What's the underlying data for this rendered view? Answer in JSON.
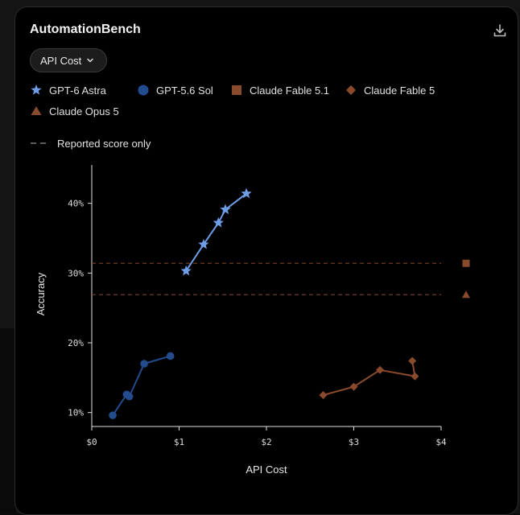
{
  "title": "AutomationBench",
  "metric_selector": {
    "selected": "API Cost"
  },
  "legend": [
    {
      "label": "GPT-6 Astra",
      "marker": "star",
      "color": "#6f9ee8"
    },
    {
      "label": "GPT-5.6 Sol",
      "marker": "circle",
      "color": "#234c8e"
    },
    {
      "label": "Claude Fable 5.1",
      "marker": "square",
      "color": "#8a4a2c"
    },
    {
      "label": "Claude Fable 5",
      "marker": "diamond",
      "color": "#8a4a2c"
    },
    {
      "label": "Claude Opus 5",
      "marker": "triangle",
      "color": "#8a4a2c"
    }
  ],
  "reported_note": "Reported score only",
  "chart_data": {
    "type": "line",
    "xlabel": "API Cost",
    "ylabel": "Accuracy",
    "xlim": [
      0,
      4
    ],
    "ylim": [
      8,
      45.5
    ],
    "x_ticks": [
      0,
      1,
      2,
      3,
      4
    ],
    "x_tick_labels": [
      "$0",
      "$1",
      "$2",
      "$3",
      "$4"
    ],
    "y_ticks": [
      10,
      20,
      30,
      40
    ],
    "y_tick_labels": [
      "10%",
      "20%",
      "30%",
      "40%"
    ],
    "grid": false,
    "series": [
      {
        "name": "GPT-6 Astra",
        "marker": "star",
        "color": "#6f9ee8",
        "points": [
          [
            1.08,
            30.3
          ],
          [
            1.28,
            34.1
          ],
          [
            1.45,
            37.2
          ],
          [
            1.53,
            39.1
          ],
          [
            1.77,
            41.4
          ]
        ]
      },
      {
        "name": "GPT-5.6 Sol",
        "marker": "circle",
        "color": "#234c8e",
        "points": [
          [
            0.24,
            9.6
          ],
          [
            0.4,
            12.6
          ],
          [
            0.43,
            12.3
          ],
          [
            0.6,
            17.0
          ],
          [
            0.9,
            18.1
          ]
        ]
      },
      {
        "name": "Claude Fable 5",
        "marker": "diamond",
        "color": "#8a4a2c",
        "points": [
          [
            2.65,
            12.5
          ],
          [
            3.0,
            13.7
          ],
          [
            3.3,
            16.1
          ],
          [
            3.7,
            15.2
          ],
          [
            3.67,
            17.4
          ]
        ]
      }
    ],
    "reported_scores": [
      {
        "name": "Claude Fable 5.1",
        "marker": "square",
        "color": "#8a4a2c",
        "y": 31.4
      },
      {
        "name": "Claude Opus 5",
        "marker": "triangle",
        "color": "#8a4a2c",
        "y": 26.9
      }
    ]
  }
}
